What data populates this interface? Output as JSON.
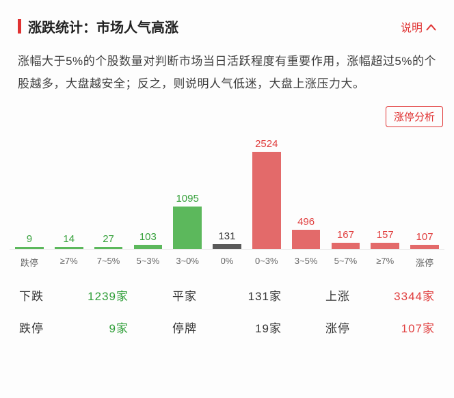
{
  "header": {
    "title": "涨跌统计：市场人气高涨",
    "help_label": "说明"
  },
  "description": "涨幅大于5%的个股数量对判断市场当日活跃程度有重要作用，涨幅超过5%的个股越多，大盘越安全；反之，则说明人气低迷，大盘上涨压力大。",
  "analysis_button": "涨停分析",
  "chart_data": {
    "type": "bar",
    "title": "",
    "xlabel": "",
    "ylabel": "",
    "categories": [
      "跌停",
      "≥7%",
      "7~5%",
      "5~3%",
      "3~0%",
      "0%",
      "0~3%",
      "3~5%",
      "5~7%",
      "≥7%",
      "涨停"
    ],
    "values": [
      9,
      14,
      27,
      103,
      1095,
      131,
      2524,
      496,
      167,
      157,
      107
    ],
    "colors": [
      "green",
      "green",
      "green",
      "green",
      "green",
      "gray",
      "red",
      "red",
      "red",
      "red",
      "red"
    ],
    "ylim": [
      0,
      2524
    ],
    "grid": false,
    "legend": "none"
  },
  "summary": {
    "rows": [
      [
        {
          "label": "下跌",
          "value": "1239家",
          "color": "green"
        },
        {
          "label": "平家",
          "value": "131家",
          "color": "dark"
        },
        {
          "label": "上涨",
          "value": "3344家",
          "color": "red"
        }
      ],
      [
        {
          "label": "跌停",
          "value": "9家",
          "color": "green"
        },
        {
          "label": "停牌",
          "value": "19家",
          "color": "dark"
        },
        {
          "label": "涨停",
          "value": "107家",
          "color": "red"
        }
      ]
    ]
  },
  "colors": {
    "accent_red": "#e03232",
    "bar_green": "#5cb85c",
    "bar_red": "#e36a6a",
    "bar_gray": "#5a5a5a",
    "text_green": "#2f9e38",
    "text_red": "#e03e3e"
  }
}
